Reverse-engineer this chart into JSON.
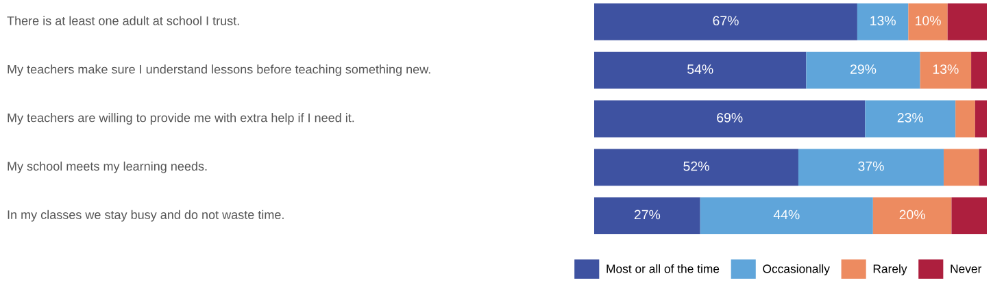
{
  "chart_data": {
    "type": "bar",
    "orientation": "horizontal",
    "stacked": true,
    "legend": "bottom right",
    "categories": [
      "There is at least one adult at school I trust.",
      "My teachers make sure I understand lessons before teaching something new.",
      "My teachers are willing to provide me with extra help if I need it.",
      "My school meets my learning needs.",
      "In my classes we stay busy and do not waste time."
    ],
    "series": [
      {
        "name": "Most or all of the time",
        "color": "#3e52a1",
        "values": [
          67,
          54,
          69,
          52,
          27
        ],
        "value_labels": [
          "67%",
          "54%",
          "69%",
          "52%",
          "27%"
        ]
      },
      {
        "name": "Occasionally",
        "color": "#5fa5da",
        "values": [
          13,
          29,
          23,
          37,
          44
        ],
        "value_labels": [
          "13%",
          "29%",
          "23%",
          "37%",
          "44%"
        ]
      },
      {
        "name": "Rarely",
        "color": "#ed8b60",
        "values": [
          10,
          13,
          5,
          9,
          20
        ],
        "value_labels": [
          "10%",
          "13%",
          null,
          null,
          "20%"
        ]
      },
      {
        "name": "Never",
        "color": "#ad1f3e",
        "values": [
          10,
          4,
          3,
          2,
          9
        ],
        "value_labels": [
          null,
          null,
          null,
          null,
          null
        ]
      }
    ]
  }
}
